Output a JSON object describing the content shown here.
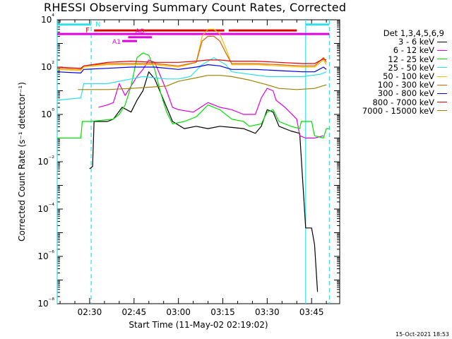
{
  "title": "RHESSI Observing Summary Count Rates, Corrected",
  "timestamp": "15-Oct-2021 18:53",
  "colors": {
    "axis": "#000000",
    "attenuator": "#e00000",
    "decimation": "#e000e0",
    "night": "#30e0e8"
  },
  "chart_data": {
    "type": "line",
    "title": "RHESSI Observing Summary Count Rates, Corrected",
    "xlabel": "Start Time (11-May-02 02:19:02)",
    "ylabel": "Corrected Count Rate (s⁻¹ detector⁻¹)",
    "yscale": "log",
    "ylim": [
      1e-08,
      10000.0
    ],
    "xlim": [
      "02:19:02",
      "03:54:30"
    ],
    "x_ticks": [
      "02:30",
      "02:45",
      "03:00",
      "03:15",
      "03:30",
      "03:45"
    ],
    "y_ticks": [
      "10⁻⁸",
      "10⁻⁶",
      "10⁻⁴",
      "10⁻²",
      "10⁰",
      "10²",
      "10⁴"
    ],
    "legend_title": "Det 1,3,4,5,6,9",
    "legend_position": "right",
    "grid": false,
    "series": [
      {
        "name": "3 - 6 keV",
        "color": "#000000",
        "points": [
          [
            "02:30",
            -2.3
          ],
          [
            "02:31",
            -2.2
          ],
          [
            "02:31:30",
            -0.3
          ],
          [
            "02:36",
            -0.3
          ],
          [
            "02:38",
            -0.2
          ],
          [
            "02:41",
            0.3
          ],
          [
            "02:44",
            0.1
          ],
          [
            "02:46",
            0.6
          ],
          [
            "02:48",
            1.0
          ],
          [
            "02:50",
            1.8
          ],
          [
            "02:52",
            1.5
          ],
          [
            "02:54",
            0.9
          ],
          [
            "02:56",
            0.3
          ],
          [
            "02:58",
            -0.3
          ],
          [
            "03:02",
            -0.6
          ],
          [
            "03:06",
            -0.5
          ],
          [
            "03:10",
            -0.6
          ],
          [
            "03:14",
            -0.5
          ],
          [
            "03:18",
            -0.55
          ],
          [
            "03:22",
            -0.6
          ],
          [
            "03:26",
            -0.8
          ],
          [
            "03:28",
            -0.5
          ],
          [
            "03:30",
            0.2
          ],
          [
            "03:32",
            0.1
          ],
          [
            "03:34",
            -0.5
          ],
          [
            "03:38",
            -0.7
          ],
          [
            "03:41",
            -0.8
          ],
          [
            "03:43",
            -4.8
          ],
          [
            "03:44",
            -4.8
          ],
          [
            "03:45",
            -4.8
          ],
          [
            "03:46",
            -5.5
          ],
          [
            "03:47",
            -7.5
          ]
        ]
      },
      {
        "name": "6 - 12 keV",
        "color": "#e000e0",
        "points": [
          [
            "02:33",
            0.3
          ],
          [
            "02:36",
            0.4
          ],
          [
            "02:38",
            0.5
          ],
          [
            "02:40",
            1.3
          ],
          [
            "02:42",
            0.8
          ],
          [
            "02:44",
            1.2
          ],
          [
            "02:46",
            1.6
          ],
          [
            "02:48",
            1.9
          ],
          [
            "02:50",
            2.3
          ],
          [
            "02:52",
            2.2
          ],
          [
            "02:54",
            1.6
          ],
          [
            "02:56",
            1.0
          ],
          [
            "02:58",
            0.3
          ],
          [
            "03:00",
            0.2
          ],
          [
            "03:05",
            0.1
          ],
          [
            "03:10",
            0.5
          ],
          [
            "03:14",
            0.3
          ],
          [
            "03:18",
            0.2
          ],
          [
            "03:22",
            0.0
          ],
          [
            "03:26",
            0.0
          ],
          [
            "03:28",
            0.7
          ],
          [
            "03:30",
            1.1
          ],
          [
            "03:32",
            1.0
          ],
          [
            "03:33",
            0.6
          ],
          [
            "03:36",
            0.3
          ],
          [
            "03:40",
            -0.2
          ],
          [
            "03:41",
            -0.9
          ],
          [
            "03:43",
            -1.0
          ],
          [
            "03:46",
            -1.0
          ],
          [
            "03:49",
            -0.9
          ]
        ]
      },
      {
        "name": "12 - 25 keV",
        "color": "#00e000",
        "points": [
          [
            "02:19:02",
            -1.0
          ],
          [
            "02:27",
            -1.0
          ],
          [
            "02:27:30",
            -0.3
          ],
          [
            "02:30",
            -0.3
          ],
          [
            "02:38",
            -0.2
          ],
          [
            "02:40",
            0.0
          ],
          [
            "02:42",
            0.4
          ],
          [
            "02:44",
            1.2
          ],
          [
            "02:46",
            2.4
          ],
          [
            "02:48",
            2.6
          ],
          [
            "02:50",
            2.5
          ],
          [
            "02:52",
            1.9
          ],
          [
            "02:54",
            0.9
          ],
          [
            "02:56",
            0.1
          ],
          [
            "02:58",
            -0.4
          ],
          [
            "03:02",
            -0.3
          ],
          [
            "03:06",
            -0.1
          ],
          [
            "03:10",
            0.4
          ],
          [
            "03:14",
            0.2
          ],
          [
            "03:18",
            -0.2
          ],
          [
            "03:22",
            -0.3
          ],
          [
            "03:24",
            -0.5
          ],
          [
            "03:28",
            -0.4
          ],
          [
            "03:30",
            0.1
          ],
          [
            "03:32",
            0.2
          ],
          [
            "03:34",
            -0.3
          ],
          [
            "03:38",
            -0.5
          ],
          [
            "03:41",
            -0.6
          ],
          [
            "03:41:30",
            -0.3
          ],
          [
            "03:45",
            -0.3
          ],
          [
            "03:46",
            -0.9
          ],
          [
            "03:49",
            -1.0
          ],
          [
            "03:50",
            -0.6
          ],
          [
            "03:51",
            -0.6
          ]
        ]
      },
      {
        "name": "25 - 50 keV",
        "color": "#30e0e8",
        "points": [
          [
            "02:19:02",
            0.6
          ],
          [
            "02:27",
            0.7
          ],
          [
            "02:28",
            1.3
          ],
          [
            "02:36",
            1.3
          ],
          [
            "02:40",
            1.4
          ],
          [
            "02:44",
            1.5
          ],
          [
            "02:48",
            1.6
          ],
          [
            "02:52",
            1.55
          ],
          [
            "02:56",
            1.5
          ],
          [
            "03:00",
            1.5
          ],
          [
            "03:04",
            1.6
          ],
          [
            "03:08",
            2.1
          ],
          [
            "03:12",
            2.4
          ],
          [
            "03:16",
            2.1
          ],
          [
            "03:18",
            1.8
          ],
          [
            "03:24",
            1.7
          ],
          [
            "03:30",
            1.6
          ],
          [
            "03:36",
            1.6
          ],
          [
            "03:42",
            1.6
          ],
          [
            "03:48",
            1.7
          ],
          [
            "03:50",
            1.8
          ]
        ]
      },
      {
        "name": "50 - 100 keV",
        "color": "#f0c000",
        "points": [
          [
            "02:19:02",
            1.9
          ],
          [
            "02:27",
            1.85
          ],
          [
            "02:28",
            2.0
          ],
          [
            "02:36",
            2.1
          ],
          [
            "02:44",
            2.1
          ],
          [
            "02:52",
            2.1
          ],
          [
            "03:00",
            2.0
          ],
          [
            "03:06",
            2.2
          ],
          [
            "03:08",
            3.3
          ],
          [
            "03:10",
            3.6
          ],
          [
            "03:12",
            3.6
          ],
          [
            "03:14",
            3.4
          ],
          [
            "03:16",
            2.8
          ],
          [
            "03:18",
            2.1
          ],
          [
            "03:26",
            2.1
          ],
          [
            "03:34",
            2.05
          ],
          [
            "03:42",
            2.0
          ],
          [
            "03:46",
            2.0
          ],
          [
            "03:49",
            2.3
          ],
          [
            "03:50",
            2.1
          ]
        ]
      },
      {
        "name": "100 - 300 keV",
        "color": "#e06000",
        "points": [
          [
            "02:19:02",
            1.95
          ],
          [
            "02:27",
            1.9
          ],
          [
            "02:28",
            2.05
          ],
          [
            "02:36",
            2.15
          ],
          [
            "02:44",
            2.15
          ],
          [
            "02:52",
            2.15
          ],
          [
            "03:00",
            2.05
          ],
          [
            "03:06",
            2.2
          ],
          [
            "03:08",
            3.1
          ],
          [
            "03:10",
            3.3
          ],
          [
            "03:12",
            3.3
          ],
          [
            "03:14",
            3.1
          ],
          [
            "03:16",
            2.6
          ],
          [
            "03:18",
            2.15
          ],
          [
            "03:26",
            2.15
          ],
          [
            "03:34",
            2.1
          ],
          [
            "03:42",
            2.05
          ],
          [
            "03:46",
            2.05
          ],
          [
            "03:49",
            2.4
          ],
          [
            "03:50",
            2.2
          ]
        ]
      },
      {
        "name": "300 - 800 keV",
        "color": "#0000e0",
        "points": [
          [
            "02:19:02",
            1.8
          ],
          [
            "02:27",
            1.75
          ],
          [
            "02:28",
            1.9
          ],
          [
            "02:36",
            1.95
          ],
          [
            "02:44",
            2.0
          ],
          [
            "02:52",
            2.0
          ],
          [
            "03:00",
            1.9
          ],
          [
            "03:06",
            2.0
          ],
          [
            "03:10",
            2.1
          ],
          [
            "03:14",
            2.05
          ],
          [
            "03:18",
            1.9
          ],
          [
            "03:26",
            1.9
          ],
          [
            "03:34",
            1.85
          ],
          [
            "03:42",
            1.8
          ],
          [
            "03:46",
            1.8
          ],
          [
            "03:49",
            2.0
          ],
          [
            "03:50",
            1.9
          ]
        ]
      },
      {
        "name": "800 - 7000 keV",
        "color": "#e00000",
        "points": [
          [
            "02:19:02",
            2.0
          ],
          [
            "02:27",
            1.95
          ],
          [
            "02:28",
            2.05
          ],
          [
            "02:36",
            2.2
          ],
          [
            "02:44",
            2.25
          ],
          [
            "02:52",
            2.2
          ],
          [
            "03:00",
            2.2
          ],
          [
            "03:06",
            2.25
          ],
          [
            "03:10",
            2.3
          ],
          [
            "03:14",
            2.3
          ],
          [
            "03:18",
            2.25
          ],
          [
            "03:26",
            2.25
          ],
          [
            "03:34",
            2.2
          ],
          [
            "03:42",
            2.15
          ],
          [
            "03:46",
            2.15
          ],
          [
            "03:49",
            2.35
          ],
          [
            "03:50",
            2.3
          ]
        ]
      },
      {
        "name": "7000 - 15000 keV",
        "color": "#a08000",
        "points": [
          [
            "02:26",
            1.05
          ],
          [
            "02:30",
            1.05
          ],
          [
            "02:36",
            1.05
          ],
          [
            "02:44",
            1.1
          ],
          [
            "02:50",
            1.15
          ],
          [
            "02:56",
            1.2
          ],
          [
            "03:00",
            1.4
          ],
          [
            "03:06",
            1.55
          ],
          [
            "03:10",
            1.65
          ],
          [
            "03:14",
            1.65
          ],
          [
            "03:18",
            1.6
          ],
          [
            "03:24",
            1.45
          ],
          [
            "03:30",
            1.25
          ],
          [
            "03:34",
            1.1
          ],
          [
            "03:40",
            1.05
          ],
          [
            "03:46",
            1.1
          ],
          [
            "03:50",
            1.25
          ]
        ]
      }
    ],
    "annotations": {
      "night": {
        "label": "N",
        "level": 3.8,
        "intervals": [
          [
            "02:19:02",
            "02:30:30"
          ],
          [
            "03:43",
            "03:51"
          ]
        ],
        "boundaries": [
          "02:19:02",
          "02:30:30",
          "03:43",
          "03:51"
        ]
      },
      "attenuator": {
        "label": "F",
        "level": 3.55,
        "intervals": [
          [
            "02:31:30",
            "03:15:30"
          ],
          [
            "03:17",
            "03:40"
          ]
        ]
      },
      "attenuator_state": {
        "label": "A1",
        "level": 3.1,
        "interval": [
          "02:41",
          "02:46"
        ]
      },
      "decimation_bar": {
        "level": 3.4,
        "interval": [
          "02:19:02",
          "03:51"
        ]
      },
      "attenuator_q": {
        "label": "AQ",
        "level": 3.38,
        "interval": [
          "02:43",
          "02:51"
        ]
      }
    }
  }
}
